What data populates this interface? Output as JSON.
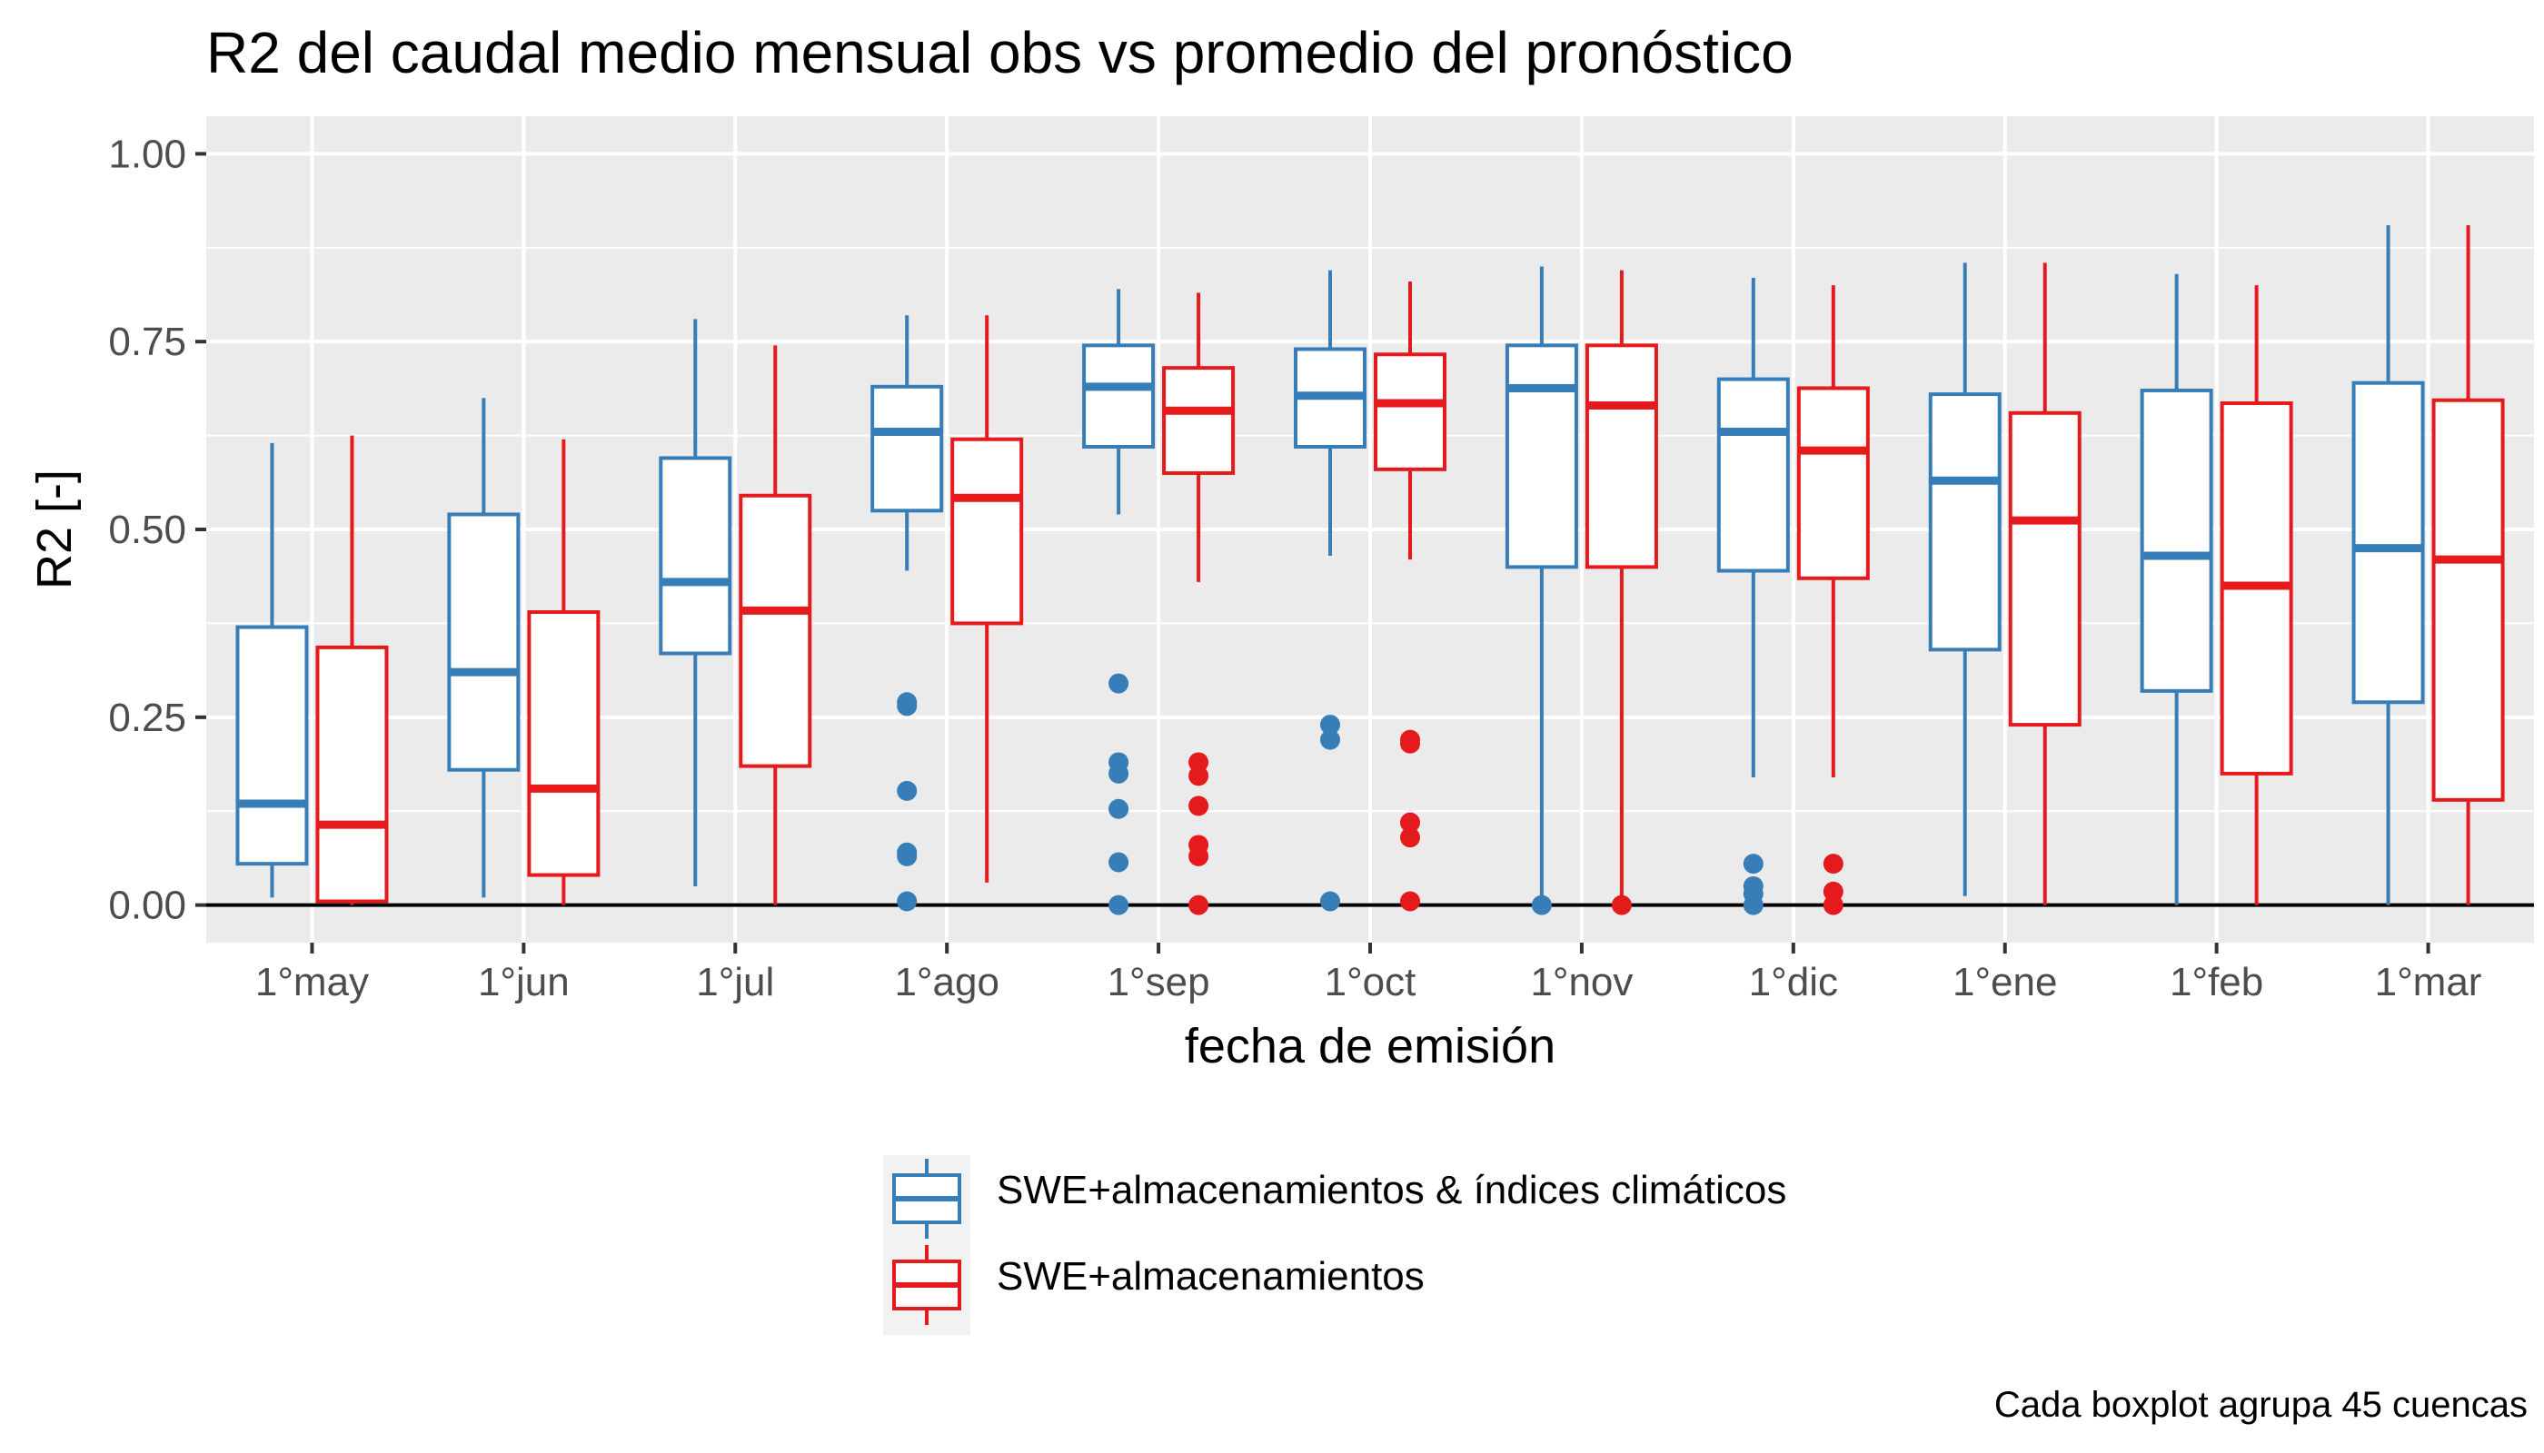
{
  "chart_data": {
    "type": "box",
    "title": "R2 del caudal medio mensual obs vs promedio del pronóstico",
    "xlabel": "fecha de emisión",
    "ylabel": "R2 [-]",
    "caption": "Cada boxplot agrupa 45 cuencas",
    "ylim": [
      -0.05,
      1.05
    ],
    "yticks": [
      0.0,
      0.25,
      0.5,
      0.75,
      1.0
    ],
    "ytick_labels": [
      "0.00",
      "0.25",
      "0.50",
      "0.75",
      "1.00"
    ],
    "reference_line_y": 0.0,
    "grid": true,
    "legend_position": "bottom",
    "categories": [
      "1°may",
      "1°jun",
      "1°jul",
      "1°ago",
      "1°sep",
      "1°oct",
      "1°nov",
      "1°dic",
      "1°ene",
      "1°feb",
      "1°mar"
    ],
    "series": [
      {
        "name": "SWE+almacenamientos & índices climáticos",
        "color": "#377EB8",
        "boxes": [
          {
            "whisker_low": 0.01,
            "q1": 0.055,
            "median": 0.135,
            "q3": 0.37,
            "whisker_high": 0.615,
            "outliers": []
          },
          {
            "whisker_low": 0.01,
            "q1": 0.18,
            "median": 0.31,
            "q3": 0.52,
            "whisker_high": 0.675,
            "outliers": []
          },
          {
            "whisker_low": 0.025,
            "q1": 0.335,
            "median": 0.43,
            "q3": 0.595,
            "whisker_high": 0.78,
            "outliers": []
          },
          {
            "whisker_low": 0.445,
            "q1": 0.525,
            "median": 0.63,
            "q3": 0.69,
            "whisker_high": 0.785,
            "outliers": [
              0.27,
              0.265,
              0.152,
              0.07,
              0.065,
              0.005
            ]
          },
          {
            "whisker_low": 0.52,
            "q1": 0.61,
            "median": 0.69,
            "q3": 0.745,
            "whisker_high": 0.82,
            "outliers": [
              0.295,
              0.19,
              0.175,
              0.128,
              0.057,
              0.0
            ]
          },
          {
            "whisker_low": 0.465,
            "q1": 0.61,
            "median": 0.678,
            "q3": 0.74,
            "whisker_high": 0.845,
            "outliers": [
              0.24,
              0.22,
              0.005
            ]
          },
          {
            "whisker_low": 0.0,
            "q1": 0.45,
            "median": 0.688,
            "q3": 0.745,
            "whisker_high": 0.85,
            "outliers": [
              0.0
            ]
          },
          {
            "whisker_low": 0.17,
            "q1": 0.445,
            "median": 0.63,
            "q3": 0.7,
            "whisker_high": 0.835,
            "outliers": [
              0.055,
              0.025,
              0.015,
              0.0
            ]
          },
          {
            "whisker_low": 0.012,
            "q1": 0.34,
            "median": 0.565,
            "q3": 0.68,
            "whisker_high": 0.855,
            "outliers": []
          },
          {
            "whisker_low": 0.0,
            "q1": 0.285,
            "median": 0.465,
            "q3": 0.685,
            "whisker_high": 0.84,
            "outliers": []
          },
          {
            "whisker_low": 0.0,
            "q1": 0.27,
            "median": 0.475,
            "q3": 0.695,
            "whisker_high": 0.905,
            "outliers": []
          }
        ]
      },
      {
        "name": "SWE+almacenamientos",
        "color": "#E41A1C",
        "boxes": [
          {
            "whisker_low": 0.0,
            "q1": 0.005,
            "median": 0.107,
            "q3": 0.343,
            "whisker_high": 0.625,
            "outliers": []
          },
          {
            "whisker_low": 0.0,
            "q1": 0.04,
            "median": 0.155,
            "q3": 0.39,
            "whisker_high": 0.62,
            "outliers": []
          },
          {
            "whisker_low": 0.0,
            "q1": 0.185,
            "median": 0.392,
            "q3": 0.545,
            "whisker_high": 0.745,
            "outliers": []
          },
          {
            "whisker_low": 0.03,
            "q1": 0.375,
            "median": 0.542,
            "q3": 0.62,
            "whisker_high": 0.785,
            "outliers": []
          },
          {
            "whisker_low": 0.43,
            "q1": 0.575,
            "median": 0.658,
            "q3": 0.715,
            "whisker_high": 0.815,
            "outliers": [
              0.19,
              0.172,
              0.132,
              0.08,
              0.065,
              0.0
            ]
          },
          {
            "whisker_low": 0.46,
            "q1": 0.58,
            "median": 0.668,
            "q3": 0.733,
            "whisker_high": 0.83,
            "outliers": [
              0.22,
              0.215,
              0.11,
              0.09,
              0.005
            ]
          },
          {
            "whisker_low": 0.0,
            "q1": 0.45,
            "median": 0.665,
            "q3": 0.745,
            "whisker_high": 0.845,
            "outliers": [
              0.0
            ]
          },
          {
            "whisker_low": 0.17,
            "q1": 0.435,
            "median": 0.605,
            "q3": 0.688,
            "whisker_high": 0.825,
            "outliers": [
              0.055,
              0.018,
              0.0
            ]
          },
          {
            "whisker_low": 0.0,
            "q1": 0.24,
            "median": 0.512,
            "q3": 0.655,
            "whisker_high": 0.855,
            "outliers": []
          },
          {
            "whisker_low": 0.0,
            "q1": 0.175,
            "median": 0.425,
            "q3": 0.668,
            "whisker_high": 0.825,
            "outliers": []
          },
          {
            "whisker_low": 0.0,
            "q1": 0.14,
            "median": 0.46,
            "q3": 0.672,
            "whisker_high": 0.905,
            "outliers": []
          }
        ]
      }
    ]
  }
}
